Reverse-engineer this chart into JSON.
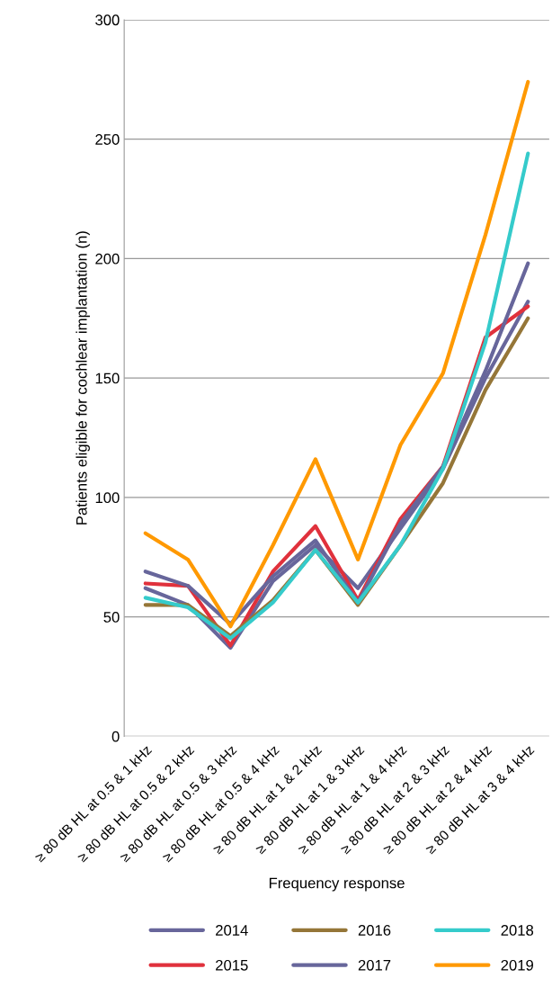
{
  "chart_data": {
    "type": "line",
    "xlabel": "Frequency response",
    "ylabel": "Patients eligible for cochlear implantation (n)",
    "categories": [
      "≥ 80 dB HL at 0.5 & 1 kHz",
      "≥ 80 dB HL at 0.5 & 2 kHz",
      "≥ 80 dB HL at 0.5 & 3 kHz",
      "≥ 80 dB HL at 0.5 & 4 kHz",
      "≥ 80 dB HL at 1 & 2 kHz",
      "≥ 80 dB HL at 1 & 3 kHz",
      "≥ 80 dB HL at 1 & 4 kHz",
      "≥ 80 dB HL at 2 & 3 kHz",
      "≥ 80 dB HL at 2 & 4 kHz",
      "≥ 80 dB HL at 3 & 4 kHz"
    ],
    "series": [
      {
        "name": "2014",
        "color": "#68669b",
        "values": [
          62,
          55,
          37,
          65,
          80,
          62,
          87,
          112,
          150,
          182
        ]
      },
      {
        "name": "2015",
        "color": "#e0313c",
        "values": [
          64,
          63,
          38,
          69,
          88,
          57,
          91,
          113,
          167,
          180
        ]
      },
      {
        "name": "2016",
        "color": "#957638",
        "values": [
          55,
          55,
          42,
          57,
          78,
          55,
          80,
          106,
          145,
          175
        ]
      },
      {
        "name": "2017",
        "color": "#67669b",
        "values": [
          69,
          63,
          47,
          67,
          82,
          56,
          89,
          113,
          153,
          198
        ]
      },
      {
        "name": "2018",
        "color": "#35cbcb",
        "values": [
          58,
          54,
          41,
          56,
          78,
          56,
          80,
          112,
          165,
          244
        ]
      },
      {
        "name": "2019",
        "color": "#ff9900",
        "values": [
          85,
          74,
          46,
          80,
          116,
          74,
          122,
          152,
          210,
          274
        ]
      }
    ],
    "ylim": [
      0,
      300
    ],
    "yticks": [
      0,
      50,
      100,
      150,
      200,
      250,
      300
    ],
    "grid": "y",
    "legend": "bottom",
    "marker": "none",
    "line_style": "solid"
  }
}
